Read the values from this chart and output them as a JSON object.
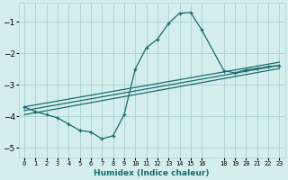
{
  "xlabel": "Humidex (Indice chaleur)",
  "background_color": "#d4eeee",
  "grid_color": "#aed4d4",
  "line_color": "#1a6b6b",
  "x_data": [
    0,
    1,
    2,
    3,
    4,
    5,
    6,
    7,
    8,
    9,
    10,
    11,
    12,
    13,
    14,
    15,
    16,
    18,
    19,
    20,
    21,
    22,
    23
  ],
  "y_main": [
    -3.7,
    -3.85,
    -3.95,
    -4.05,
    -4.25,
    -4.45,
    -4.5,
    -4.72,
    -4.62,
    -3.95,
    -2.5,
    -1.82,
    -1.55,
    -1.05,
    -0.72,
    -0.7,
    -1.25,
    -2.55,
    -2.62,
    -2.52,
    -2.48,
    -2.42,
    -2.38
  ],
  "line1_x": [
    0,
    23
  ],
  "line1_y": [
    -3.7,
    -2.28
  ],
  "line2_x": [
    0,
    23
  ],
  "line2_y": [
    -3.82,
    -2.38
  ],
  "line3_x": [
    0,
    23
  ],
  "line3_y": [
    -3.95,
    -2.48
  ],
  "ylim": [
    -5.3,
    -0.4
  ],
  "xlim": [
    -0.5,
    23.5
  ],
  "yticks": [
    -5,
    -4,
    -3,
    -2,
    -1
  ],
  "xtick_positions": [
    0,
    1,
    2,
    3,
    4,
    5,
    6,
    7,
    8,
    9,
    10,
    11,
    12,
    13,
    14,
    15,
    16,
    18,
    19,
    20,
    21,
    22,
    23
  ],
  "xtick_labels": [
    "0",
    "1",
    "2",
    "3",
    "4",
    "5",
    "6",
    "7",
    "8",
    "9",
    "10",
    "11",
    "12",
    "13",
    "14",
    "15",
    "16",
    "18",
    "19",
    "20",
    "21",
    "22",
    "23"
  ],
  "marker": "+"
}
